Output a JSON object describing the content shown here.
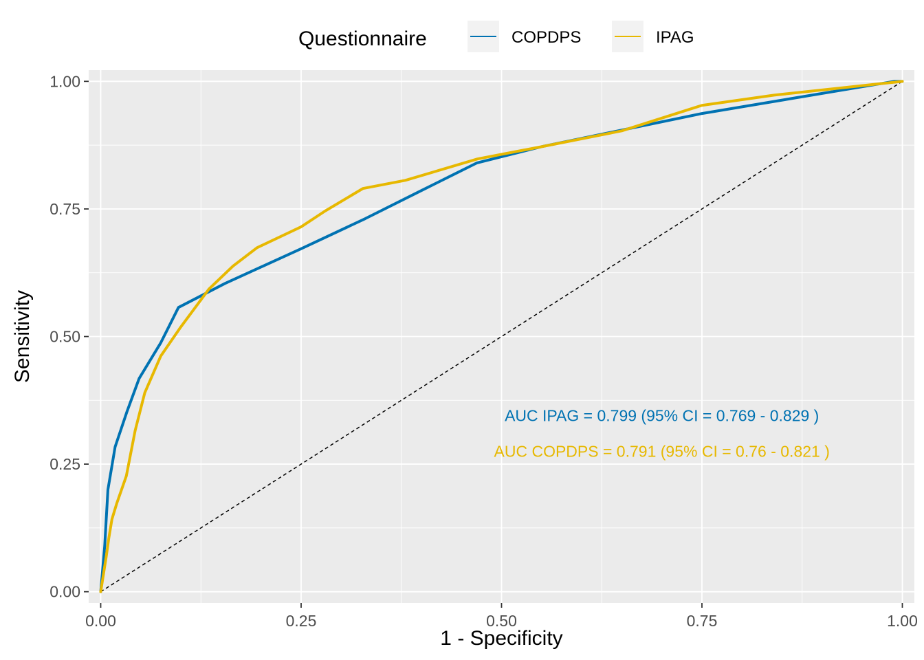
{
  "chart_data": {
    "type": "line",
    "xlabel": "1 - Specificity",
    "ylabel": "Sensitivity",
    "xlim": [
      0,
      1
    ],
    "ylim": [
      0,
      1
    ],
    "x_ticks": [
      0,
      0.25,
      0.5,
      0.75,
      1
    ],
    "y_ticks": [
      0,
      0.25,
      0.5,
      0.75,
      1
    ],
    "x_tick_labels": [
      "0.00",
      "0.25",
      "0.50",
      "0.75",
      "1.00"
    ],
    "y_tick_labels": [
      "0.00",
      "0.25",
      "0.50",
      "0.75",
      "1.00"
    ],
    "grid": true,
    "legend": {
      "title": "Questionnaire",
      "position": "top",
      "entries": [
        "COPDPS",
        "IPAG"
      ]
    },
    "series": [
      {
        "name": "COPDPS",
        "color": "#0072B2",
        "x": [
          0,
          0.005,
          0.009,
          0.018,
          0.033,
          0.048,
          0.075,
          0.097,
          0.155,
          0.25,
          0.33,
          0.4,
          0.469,
          0.55,
          0.75,
          0.99,
          1.0
        ],
        "y": [
          0,
          0.09,
          0.2,
          0.284,
          0.354,
          0.418,
          0.488,
          0.557,
          0.604,
          0.672,
          0.731,
          0.786,
          0.84,
          0.872,
          0.937,
          1.0,
          1.0
        ]
      },
      {
        "name": "IPAG",
        "color": "#E7B800",
        "x": [
          0,
          0.007,
          0.01,
          0.014,
          0.02,
          0.032,
          0.043,
          0.055,
          0.075,
          0.1,
          0.135,
          0.165,
          0.195,
          0.25,
          0.28,
          0.327,
          0.38,
          0.47,
          0.55,
          0.65,
          0.75,
          0.84,
          1.0
        ],
        "y": [
          0,
          0.07,
          0.104,
          0.142,
          0.173,
          0.227,
          0.316,
          0.39,
          0.462,
          0.519,
          0.593,
          0.638,
          0.674,
          0.715,
          0.746,
          0.79,
          0.806,
          0.848,
          0.872,
          0.903,
          0.953,
          0.973,
          1.0
        ]
      }
    ],
    "reference_line": {
      "x": [
        0,
        1
      ],
      "y": [
        0,
        1
      ],
      "style": "dashed",
      "color": "#000000"
    },
    "annotations": [
      {
        "text": "AUC IPAG =  0.799  (95% CI =  0.769  -  0.829 )",
        "color": "#0072B2",
        "x": 0.7,
        "y": 0.345
      },
      {
        "text": "AUC COPDPS =  0.791 (95% CI =  0.76  -  0.821 )",
        "color": "#E7B800",
        "x": 0.7,
        "y": 0.275
      }
    ]
  },
  "colors": {
    "panel_background": "#EBEBEB",
    "grid": "#FFFFFF",
    "tick_text": "#4d4d4d"
  }
}
